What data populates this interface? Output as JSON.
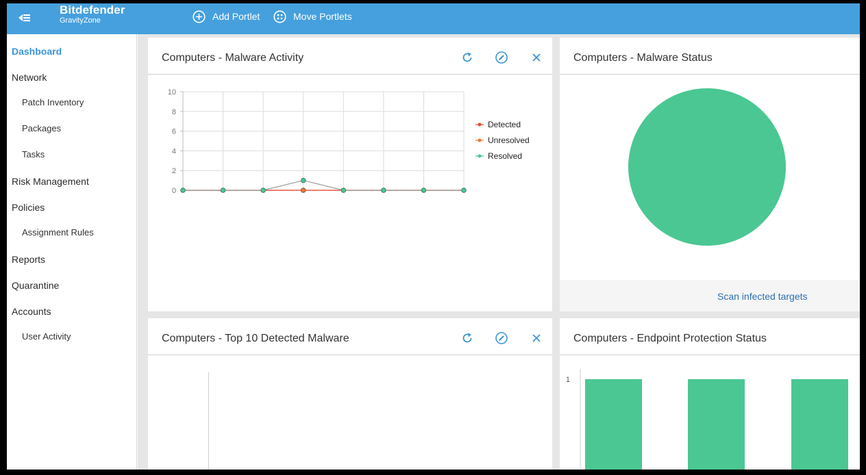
{
  "header": {
    "brand_name": "Bitdefender",
    "brand_sub": "GravityZone",
    "add_portlet": "Add Portlet",
    "move_portlets": "Move Portlets"
  },
  "sidebar": {
    "items": [
      {
        "label": "Dashboard"
      },
      {
        "label": "Network"
      },
      {
        "label": "Patch Inventory"
      },
      {
        "label": "Packages"
      },
      {
        "label": "Tasks"
      },
      {
        "label": "Risk Management"
      },
      {
        "label": "Policies"
      },
      {
        "label": "Assignment Rules"
      },
      {
        "label": "Reports"
      },
      {
        "label": "Quarantine"
      },
      {
        "label": "Accounts"
      },
      {
        "label": "User Activity"
      }
    ]
  },
  "portlets": {
    "malware_activity": {
      "title": "Computers - Malware Activity"
    },
    "malware_status": {
      "title": "Computers - Malware Status",
      "link": "Scan infected targets"
    },
    "top10": {
      "title": "Computers - Top 10 Detected Malware"
    },
    "protection_status": {
      "title": "Computers - Endpoint Protection Status"
    }
  },
  "colors": {
    "header": "#45a0dd",
    "accent": "#3a95d6",
    "green": "#4bc793",
    "detected": "#e24a3b",
    "unresolved": "#ee7a30"
  },
  "chart_data": [
    {
      "type": "line",
      "x": [
        1,
        2,
        3,
        4,
        5,
        6,
        7,
        8
      ],
      "ylim": [
        0,
        10
      ],
      "yticks": [
        "0",
        "2",
        "4",
        "6",
        "8",
        "10"
      ],
      "grid": true,
      "legend": "right",
      "series": [
        {
          "name": "Detected",
          "values": [
            0,
            0,
            0,
            0,
            0,
            0,
            0,
            0
          ],
          "color": "#e24a3b"
        },
        {
          "name": "Unresolved",
          "values": [
            0,
            0,
            0,
            0,
            0,
            0,
            0,
            0
          ],
          "color": "#ee7a30"
        },
        {
          "name": "Resolved",
          "values": [
            0,
            0,
            0,
            1,
            0,
            0,
            0,
            0
          ],
          "color": "#4bc793"
        }
      ]
    },
    {
      "type": "pie",
      "values": [
        100
      ],
      "colors": [
        "#4bc793"
      ]
    },
    {
      "type": "bar",
      "ytick": "1",
      "values": [
        1,
        1,
        1
      ],
      "color": "#4bc793"
    }
  ]
}
